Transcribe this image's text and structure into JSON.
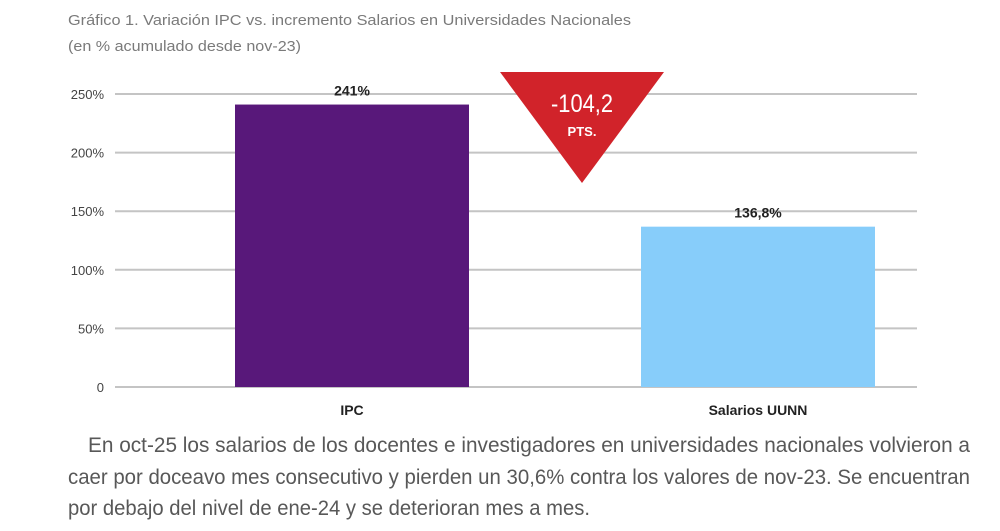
{
  "chart_data": {
    "type": "bar",
    "title": "Gráfico 1. Variación IPC vs. incremento Salarios en Universidades Nacionales",
    "subtitle": "(en % acumulado desde nov-23)",
    "categories": [
      "IPC",
      "Salarios UUNN"
    ],
    "values": [
      241,
      136.8
    ],
    "data_labels": [
      "241%",
      "136,8%"
    ],
    "colors": [
      "#58187a",
      "#87cdfa"
    ],
    "ylim": [
      0,
      250
    ],
    "yticks": [
      0,
      50,
      100,
      150,
      200,
      250
    ],
    "ytick_labels": [
      "0",
      "50%",
      "100%",
      "150%",
      "200%",
      "250%"
    ],
    "grid": true,
    "annotation": {
      "value": "-104,2",
      "unit": "PTS.",
      "shape": "downward-triangle",
      "color": "#d1232a"
    }
  },
  "paragraph": {
    "lines": [
      "En oct-25 los salarios de los docentes e investigadores en universidades nacionales volvieron a",
      "caer por doceavo mes consecutivo y pierden un 30,6% contra los valores de nov-23. Se encuentran",
      "por debajo del nivel de ene-24 y se deterioran mes a mes."
    ]
  }
}
